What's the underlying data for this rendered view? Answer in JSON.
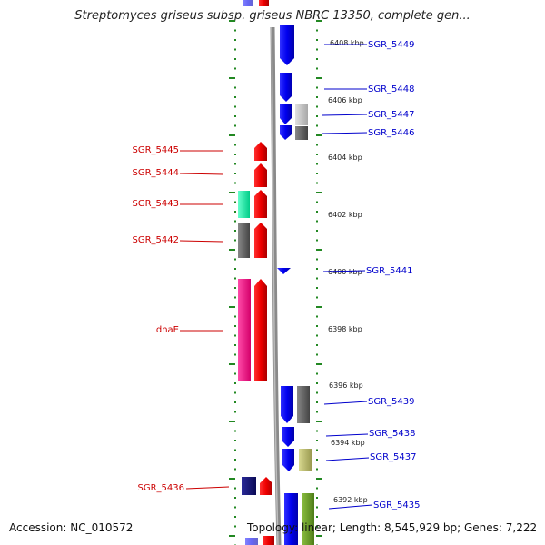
{
  "title": "Streptomyces griseus subsp. griseus NBRC 13350, complete gen...",
  "footer": {
    "accession": "Accession: NC_010572",
    "summary": "Topology: linear; Length: 8,545,929 bp; Genes: 7,222"
  },
  "colors": {
    "left_label": "#cc0000",
    "right_label": "#0000cc",
    "forward_arrow": "#ff0000",
    "reverse_arrow": "#0000ff",
    "tick": "#228822",
    "backbone": "#888888"
  },
  "kbp_ticks": [
    "6408 kbp",
    "6406 kbp",
    "6404 kbp",
    "6402 kbp",
    "6400 kbp",
    "6398 kbp",
    "6396 kbp",
    "6394 kbp",
    "6392 kbp"
  ],
  "left_genes": [
    "SGR_5445",
    "SGR_5444",
    "SGR_5443",
    "SGR_5442",
    "dnaE",
    "SGR_5436"
  ],
  "right_genes": [
    "SGR_5449",
    "SGR_5448",
    "SGR_5447",
    "SGR_5446",
    "SGR_5441",
    "SGR_5439",
    "SGR_5438",
    "SGR_5437",
    "SGR_5435"
  ]
}
